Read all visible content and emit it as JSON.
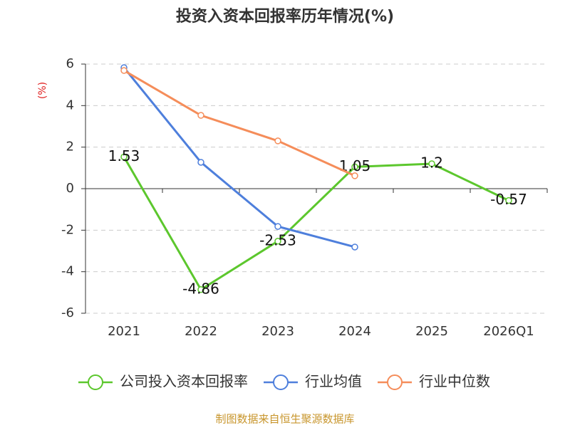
{
  "chart_data": {
    "type": "line",
    "title": "投资入资本回报率历年情况(%)",
    "y_label": "(%)",
    "source": "制图数据来自恒生聚源数据库",
    "categories": [
      "2021",
      "2022",
      "2023",
      "2024",
      "2025",
      "2026Q1"
    ],
    "series": [
      {
        "name": "公司投入资本回报率",
        "color": "#5cc72d",
        "values": [
          1.53,
          -4.86,
          -2.53,
          1.05,
          1.2,
          -0.57
        ],
        "data_labels": true
      },
      {
        "name": "行业均值",
        "color": "#4e7fdc",
        "values": [
          5.83,
          1.27,
          -1.82,
          -2.81,
          null,
          null
        ]
      },
      {
        "name": "行业中位数",
        "color": "#f58d5a",
        "values": [
          5.69,
          3.53,
          2.3,
          0.62,
          null,
          null
        ]
      }
    ],
    "ylim": [
      -6,
      6
    ],
    "yticks": [
      -6,
      -4,
      -2,
      0,
      2,
      4,
      6
    ],
    "grid": true
  }
}
